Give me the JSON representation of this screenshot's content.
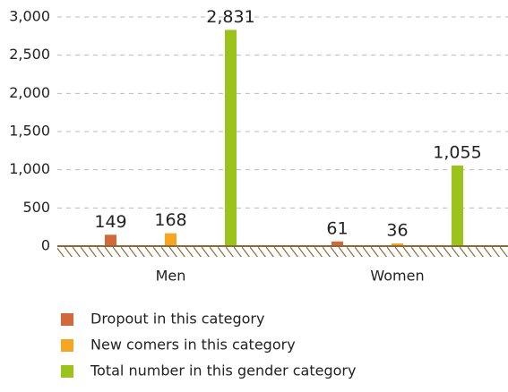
{
  "chart_data": {
    "type": "bar",
    "categories": [
      "Men",
      "Women"
    ],
    "series": [
      {
        "name": "Dropout in this category",
        "color": "#d2693a",
        "values": [
          149,
          61
        ]
      },
      {
        "name": "New comers in this category",
        "color": "#f5a623",
        "values": [
          168,
          36
        ]
      },
      {
        "name": "Total number in this gender category",
        "color": "#9bc31c",
        "values": [
          2831,
          1055
        ],
        "value_labels": [
          "2,831",
          "1,055"
        ]
      }
    ],
    "ylim": [
      0,
      3000
    ],
    "yticks": [
      0,
      500,
      {
        "value": 1000,
        "label": "1,000"
      },
      {
        "value": 1500,
        "label": "1,500"
      },
      {
        "value": 2000,
        "label": "2,000"
      },
      {
        "value": 2500,
        "label": "2,500"
      },
      {
        "value": 3000,
        "label": "3,000"
      }
    ],
    "grid": true,
    "legend": "bottom"
  }
}
